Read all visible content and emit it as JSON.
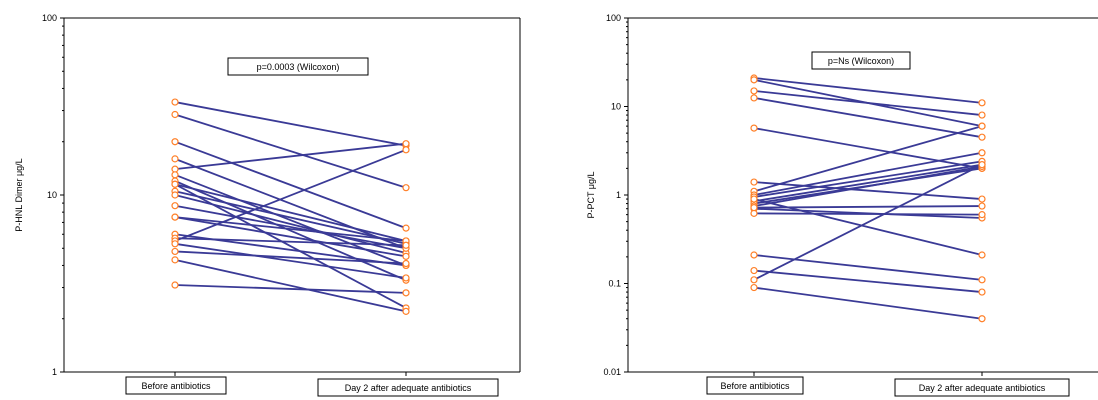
{
  "colors": {
    "line": "#3a3a96",
    "marker": "#ff7f27",
    "frame": "#000000"
  },
  "chart_data": [
    {
      "type": "line",
      "title": "",
      "xlabel": "",
      "ylabel": "P-HNL Dimer μg/L",
      "yscale": "log",
      "ylim": [
        1,
        100
      ],
      "ytick_labels": [
        "1",
        "10",
        "100"
      ],
      "yticks": [
        1,
        10,
        100
      ],
      "categories": [
        "Before antibiotics",
        "Day 2 after adequate antibiotics"
      ],
      "annotation": "p=0.0003 (Wilcoxon)",
      "legend": "none",
      "grid": false,
      "series": [
        {
          "values": [
            33.5,
            19.0
          ]
        },
        {
          "values": [
            28.5,
            11.0
          ]
        },
        {
          "values": [
            20.0,
            6.5
          ]
        },
        {
          "values": [
            16.0,
            5.0
          ]
        },
        {
          "values": [
            14.0,
            19.5
          ]
        },
        {
          "values": [
            13.0,
            4.0
          ]
        },
        {
          "values": [
            12.0,
            3.3
          ]
        },
        {
          "values": [
            11.5,
            2.3
          ]
        },
        {
          "values": [
            11.5,
            5.5
          ]
        },
        {
          "values": [
            10.5,
            5.3
          ]
        },
        {
          "values": [
            10.0,
            4.7
          ]
        },
        {
          "values": [
            8.7,
            5.0
          ]
        },
        {
          "values": [
            7.5,
            5.5
          ]
        },
        {
          "values": [
            7.5,
            4.5
          ]
        },
        {
          "values": [
            6.0,
            4.0
          ]
        },
        {
          "values": [
            5.7,
            5.2
          ]
        },
        {
          "values": [
            5.5,
            18.0
          ]
        },
        {
          "values": [
            5.3,
            3.4
          ]
        },
        {
          "values": [
            4.8,
            4.1
          ]
        },
        {
          "values": [
            4.3,
            2.2
          ]
        },
        {
          "values": [
            3.1,
            2.8
          ]
        }
      ]
    },
    {
      "type": "line",
      "title": "",
      "xlabel": "",
      "ylabel": "P-PCT μg/L",
      "yscale": "log",
      "ylim": [
        0.01,
        100
      ],
      "ytick_labels": [
        "0.01",
        "0.1",
        "1",
        "10",
        "100"
      ],
      "yticks": [
        0.01,
        0.1,
        1,
        10,
        100
      ],
      "categories": [
        "Before antibiotics",
        "Day 2 after adequate antibiotics"
      ],
      "annotation": "p=Ns (Wilcoxon)",
      "legend": "none",
      "grid": false,
      "series": [
        {
          "values": [
            21.0,
            11.0
          ]
        },
        {
          "values": [
            20.0,
            6.0
          ]
        },
        {
          "values": [
            15.0,
            8.0
          ]
        },
        {
          "values": [
            12.5,
            4.5
          ]
        },
        {
          "values": [
            5.7,
            2.0
          ]
        },
        {
          "values": [
            1.4,
            0.9
          ]
        },
        {
          "values": [
            1.1,
            6.0
          ]
        },
        {
          "values": [
            1.0,
            3.0
          ]
        },
        {
          "values": [
            0.95,
            2.4
          ]
        },
        {
          "values": [
            0.85,
            2.2
          ]
        },
        {
          "values": [
            0.8,
            2.0
          ]
        },
        {
          "values": [
            0.75,
            2.1
          ]
        },
        {
          "values": [
            0.7,
            0.55
          ]
        },
        {
          "values": [
            0.62,
            0.6
          ]
        },
        {
          "values": [
            0.11,
            2.2
          ]
        },
        {
          "values": [
            0.21,
            0.11
          ]
        },
        {
          "values": [
            0.14,
            0.08
          ]
        },
        {
          "values": [
            0.09,
            0.04
          ]
        },
        {
          "values": [
            0.9,
            0.21
          ]
        },
        {
          "values": [
            0.72,
            0.75
          ]
        }
      ]
    }
  ]
}
